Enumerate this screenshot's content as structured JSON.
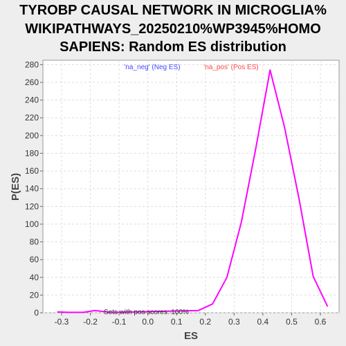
{
  "chart_data": {
    "type": "line",
    "title_lines": [
      "TYROBP CAUSAL NETWORK IN MICROGLIA%",
      "WIKIPATHWAYS_20250210%WP3945%HOMO",
      "SAPIENS: Random ES distribution"
    ],
    "xlabel": "ES",
    "ylabel": "P(ES)",
    "xlim": [
      -0.365,
      0.665
    ],
    "ylim": [
      0,
      285
    ],
    "x_ticks": [
      -0.3,
      -0.2,
      -0.1,
      0.0,
      0.1,
      0.2,
      0.3,
      0.4,
      0.5,
      0.6
    ],
    "x_tick_labels": [
      "-0.3",
      "-0.2",
      "-0.1",
      "0.0",
      "0.1",
      "0.2",
      "0.3",
      "0.4",
      "0.5",
      "0.6"
    ],
    "y_ticks": [
      0,
      20,
      40,
      60,
      80,
      100,
      120,
      140,
      160,
      180,
      200,
      220,
      240,
      260,
      280
    ],
    "y_tick_labels": [
      "0",
      "20",
      "40",
      "60",
      "80",
      "100",
      "120",
      "140",
      "160",
      "180",
      "200",
      "220",
      "240",
      "260",
      "280"
    ],
    "grid": true,
    "series": [
      {
        "color": "#ff00ff",
        "x": [
          -0.315,
          -0.275,
          -0.225,
          -0.185,
          -0.155,
          -0.125,
          0.175,
          0.225,
          0.275,
          0.325,
          0.375,
          0.425,
          0.475,
          0.525,
          0.575,
          0.625
        ],
        "y": [
          1,
          0.5,
          0.5,
          2.5,
          1.5,
          0.5,
          2.5,
          10,
          40,
          102,
          185,
          274,
          210,
          130,
          41,
          7
        ]
      }
    ],
    "legend": [
      {
        "text": "'na_neg' (Neg ES)",
        "color": "#4444ff"
      },
      {
        "text": "'na_pos' (Pos ES)",
        "color": "#ff4444"
      }
    ],
    "legend_placement": "top-center",
    "annotation": "Sets with pos scores: 100%"
  }
}
